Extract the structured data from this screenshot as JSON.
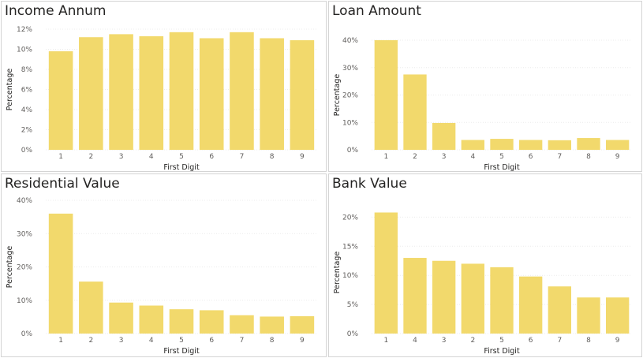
{
  "chart_data": [
    {
      "type": "bar",
      "title": "Income Annum",
      "xlabel": "First Digit",
      "ylabel": "Percentage",
      "categories": [
        "1",
        "2",
        "3",
        "4",
        "5",
        "6",
        "7",
        "8",
        "9"
      ],
      "values": [
        9.8,
        11.2,
        11.5,
        11.3,
        11.7,
        11.1,
        11.7,
        11.1,
        10.9
      ],
      "ylim": [
        0,
        12
      ],
      "yticks": [
        "0%",
        "2%",
        "4%",
        "6%",
        "8%",
        "10%",
        "12%"
      ],
      "ytick_values": [
        0,
        2,
        4,
        6,
        8,
        10,
        12
      ],
      "grid": true,
      "color": "#F2D96C"
    },
    {
      "type": "bar",
      "title": "Loan Amount",
      "xlabel": "First Digit",
      "ylabel": "Percentage",
      "categories": [
        "1",
        "2",
        "3",
        "4",
        "5",
        "6",
        "7",
        "8",
        "9"
      ],
      "values": [
        40.0,
        27.5,
        9.8,
        3.6,
        4.0,
        3.6,
        3.5,
        4.3,
        3.6
      ],
      "ylim": [
        0,
        40
      ],
      "yticks": [
        "0%",
        "10%",
        "20%",
        "30%",
        "40%"
      ],
      "ytick_values": [
        0,
        10,
        20,
        30,
        40
      ],
      "grid": true,
      "color": "#F2D96C"
    },
    {
      "type": "bar",
      "title": "Residential Value",
      "xlabel": "First Digit",
      "ylabel": "Percentage",
      "categories": [
        "1",
        "2",
        "3",
        "4",
        "5",
        "6",
        "7",
        "8",
        "9"
      ],
      "values": [
        36.0,
        15.6,
        9.3,
        8.4,
        7.3,
        7.0,
        5.5,
        5.1,
        5.2
      ],
      "ylim": [
        0,
        40
      ],
      "yticks": [
        "0%",
        "10%",
        "20%",
        "30%",
        "40%"
      ],
      "ytick_values": [
        0,
        10,
        20,
        30,
        40
      ],
      "grid": true,
      "color": "#F2D96C"
    },
    {
      "type": "bar",
      "title": "Bank Value",
      "xlabel": "First Digit",
      "ylabel": "Percentage",
      "categories": [
        "1",
        "4",
        "3",
        "2",
        "5",
        "6",
        "7",
        "8",
        "9"
      ],
      "values": [
        20.8,
        13.0,
        12.5,
        12.0,
        11.4,
        9.8,
        8.1,
        6.2,
        6.2
      ],
      "ylim": [
        0,
        21
      ],
      "yticks": [
        "0%",
        "5%",
        "10%",
        "15%",
        "20%"
      ],
      "ytick_values": [
        0,
        5,
        10,
        15,
        20
      ],
      "grid": true,
      "color": "#F2D96C"
    }
  ]
}
